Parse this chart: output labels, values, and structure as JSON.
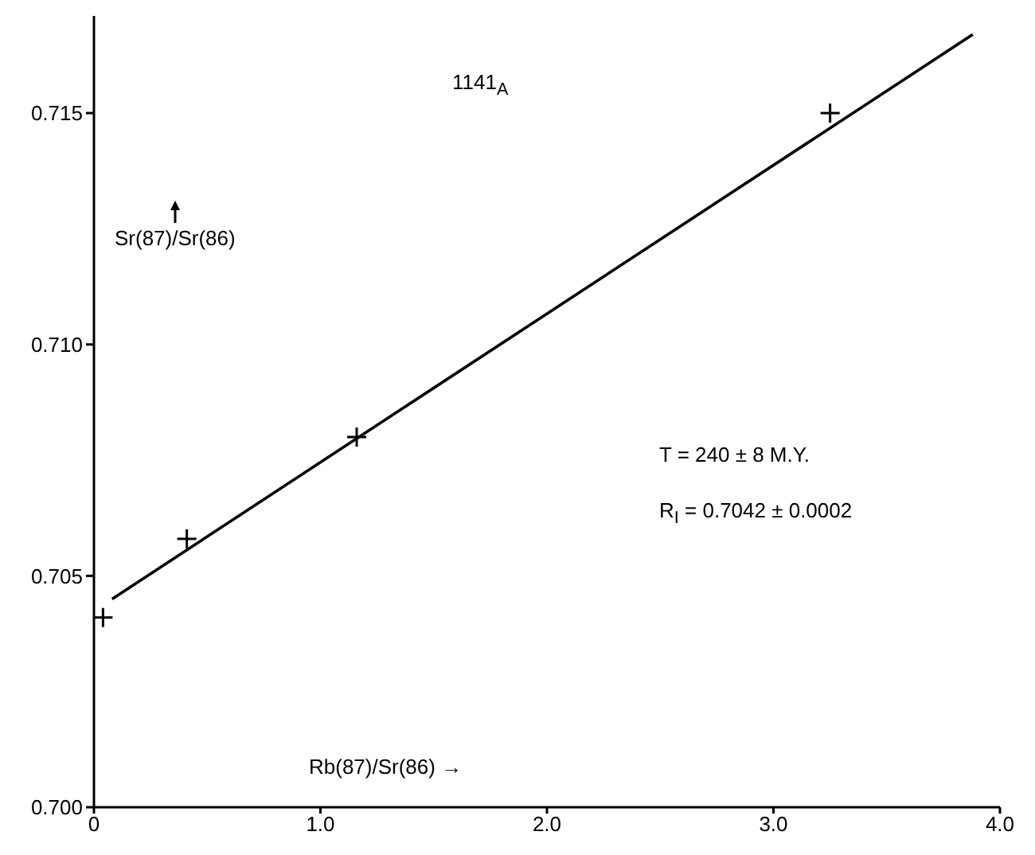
{
  "chart_data": {
    "type": "scatter",
    "xlabel": "Rb(87)/Sr(86) →",
    "ylabel": "Sr(87)/Sr(86)",
    "annotations": [
      "1141$_{A}$",
      "T = 240 ± 8 M.Y.",
      "R$_{I}$ = 0.7042 ± 0.0002"
    ],
    "xlim": [
      0,
      4
    ],
    "xticks": [
      0,
      {
        "value": 1,
        "label": "1.0"
      },
      {
        "value": 2,
        "label": "2.0"
      },
      {
        "value": 3,
        "label": "3.0"
      },
      {
        "value": 4,
        "label": "4.0"
      }
    ],
    "ylim": [
      0.7,
      0.7171
    ],
    "yticks": [
      {
        "value": 0.7,
        "label": "0.700"
      },
      {
        "value": 0.705,
        "label": "0.705"
      },
      {
        "value": 0.71,
        "label": "0.710"
      },
      {
        "value": 0.715,
        "label": "0.715"
      }
    ],
    "series": [
      {
        "color": "#000000",
        "marker": "cross",
        "x": [
          0.04,
          0.41,
          1.16,
          3.25
        ],
        "values": [
          0.7041,
          0.7058,
          0.708,
          0.715
        ]
      },
      {
        "type": "line",
        "color": "#000000",
        "marker": "none",
        "line_style": "solid",
        "x": [
          0.08,
          3.88
        ],
        "values": [
          0.7045,
          0.7167
        ]
      }
    ]
  }
}
